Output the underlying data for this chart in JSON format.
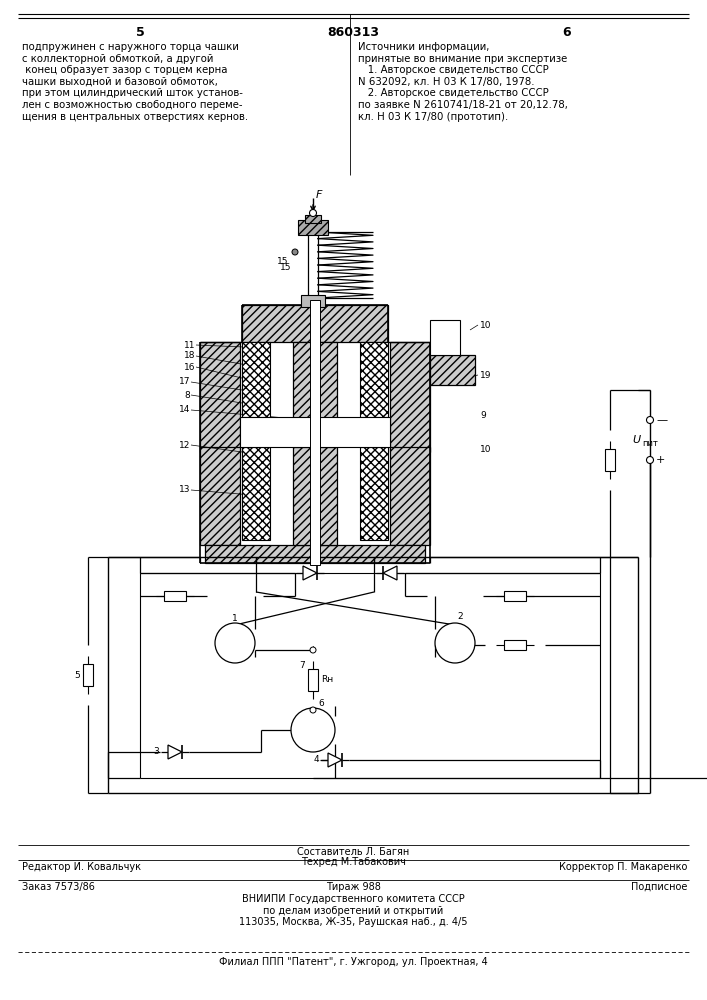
{
  "page_number_left": "5",
  "page_number_center": "860313",
  "page_number_right": "6",
  "text_left": "подпружинен с наружного торца чашки\nс коллекторной обмоткой, а другой\n конец образует зазор с торцем керна\nчашки выходной и базовой обмоток,\nпри этом цилиндрический шток установ-\nлен с возможностью свободного переме-\nщения в центральных отверстиях кернов.",
  "text_right": "Источники информации,\nпринятые во внимание при экспертизе\n   1. Авторское свидетельство СССР\nN 632092, кл. Н 03 К 17/80, 1978.\n   2. Авторское свидетельство СССР\nпо заявке N 2610741/18-21 от 20,12.78,\nкл. Н 03 К 17/80 (прототип).",
  "footer_editor": "Редактор И. Ковальчук",
  "footer_compiler": "Составитель Л. Багян",
  "footer_techred": "Техред М.Табакович",
  "footer_corrector": "Корректор П. Макаренко",
  "footer_order": "Заказ 7573/86",
  "footer_tirazh": "Тираж 988",
  "footer_podpisnoe": "Подписное",
  "footer_vniipи": "ВНИИПИ Государственного комитета СССР\nпо делам изобретений и открытий\n113035, Москва, Ж-35, Раушская наб., д. 4/5",
  "footer_filial": "Филиал ППП \"Патент\", г. Ужгород, ул. Проектная, 4",
  "bg_color": "#ffffff"
}
